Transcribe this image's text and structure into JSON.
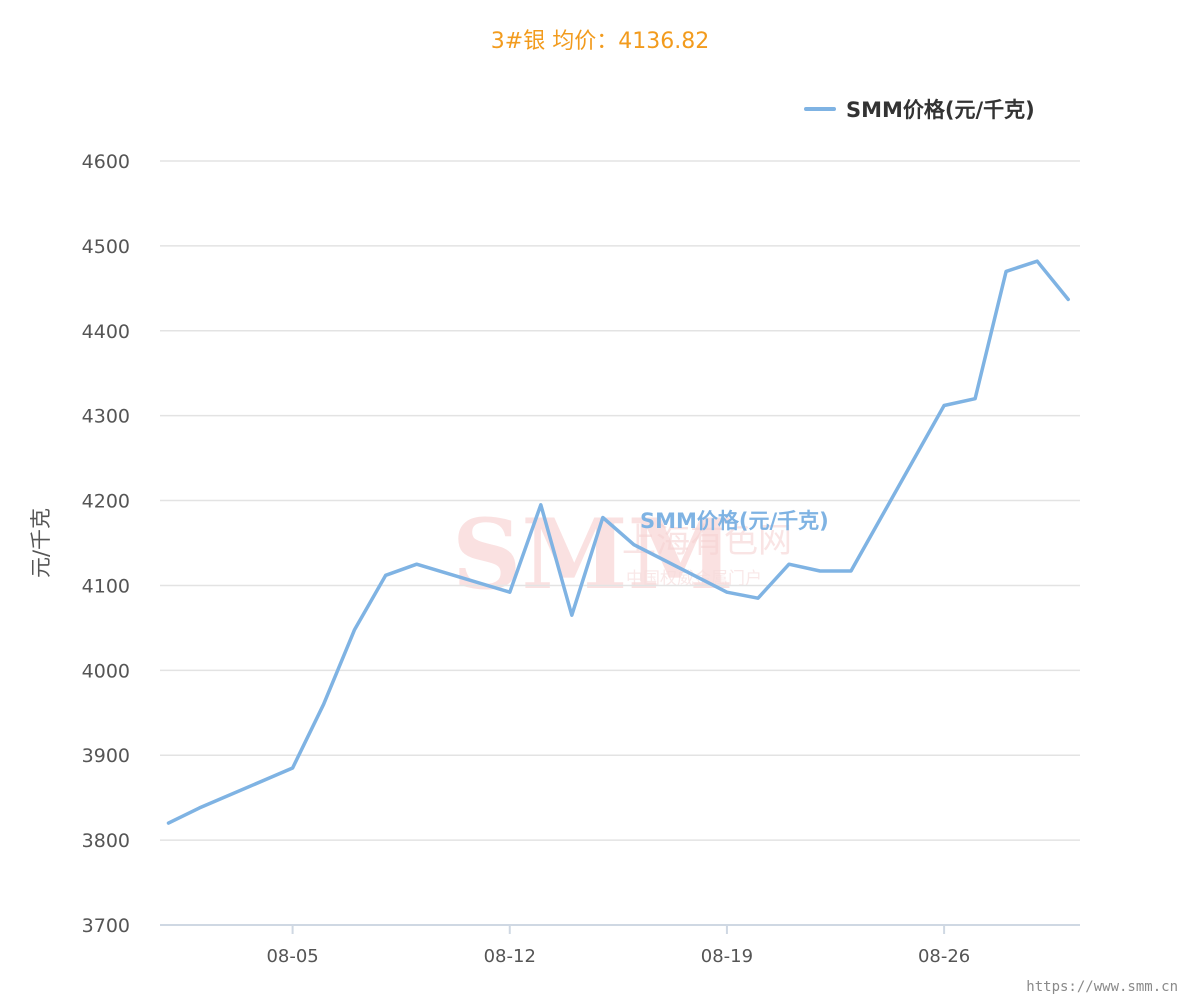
{
  "title": "3#银 均价：4136.82",
  "colors": {
    "title": "#f29b1d",
    "series": "#7fb3e3",
    "grid": "#e3e3e3",
    "axis": "#cfd8e3",
    "watermark": "#f6c9c9"
  },
  "watermark": {
    "logo": "SMM",
    "name_cn": "上海有色网",
    "slogan": "中国权威金属门户",
    "overlay_label": "SMM价格(元/千克)"
  },
  "footer": {
    "url": "https://www.smm.cn"
  },
  "chart_data": {
    "type": "line",
    "title": "3#银 均价：4136.82",
    "ylabel": "元/千克",
    "xlabel": "",
    "ylim": [
      3700,
      4600
    ],
    "yticks": [
      "3700",
      "3800",
      "3900",
      "4000",
      "4100",
      "4200",
      "4300",
      "4400",
      "4500",
      "4600"
    ],
    "xticks": [
      "08-05",
      "08-12",
      "08-19",
      "08-26"
    ],
    "grid": true,
    "legend_position": "top-right",
    "x": [
      "08-01",
      "08-02",
      "08-05",
      "08-06",
      "08-07",
      "08-08",
      "08-09",
      "08-12",
      "08-13",
      "08-14",
      "08-15",
      "08-16",
      "08-19",
      "08-20",
      "08-21",
      "08-22",
      "08-23",
      "08-26",
      "08-27",
      "08-28",
      "08-29",
      "08-30"
    ],
    "series": [
      {
        "name": "SMM价格(元/千克)",
        "values": [
          3820,
          3838,
          3885,
          3960,
          4048,
          4112,
          4125,
          4092,
          4195,
          4065,
          4180,
          4148,
          4092,
          4085,
          4125,
          4117,
          4117,
          4312,
          4320,
          4470,
          4482,
          4437
        ]
      }
    ]
  }
}
